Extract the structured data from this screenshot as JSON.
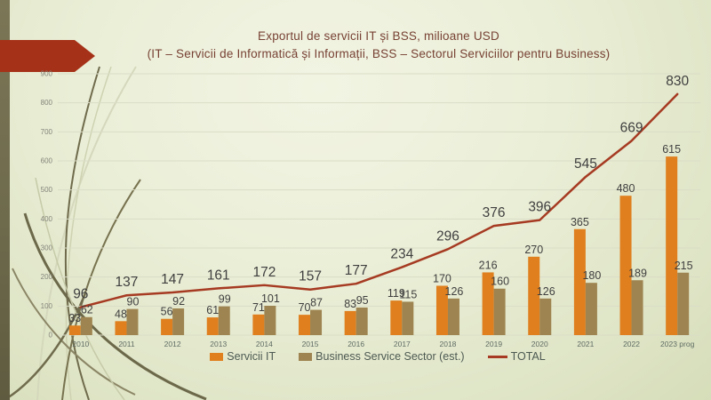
{
  "title": {
    "line1": "Exportul de servicii IT și BSS, milioane USD",
    "line2": "(IT – Servicii de Informatică și Informații, BSS – Sectorul Serviciilor pentru Business)"
  },
  "legend": {
    "servicii_it": "Servicii IT",
    "bss": "Business Service Sector (est.)",
    "total": "TOTAL"
  },
  "colors": {
    "servicii_it": "#DF7F1E",
    "bss": "#9E8450",
    "total_line": "#A63A22",
    "arrow_accent": "#A53218",
    "title_text": "#774134",
    "data_label": "#3F3F3F",
    "axis_tick_label": "#84847A",
    "year_label": "#5F6B63",
    "legend_text": "#4D5952",
    "gridline": "#DADDC6"
  },
  "chart_data": {
    "type": "bar+line combo",
    "title": "Exportul de servicii IT și BSS, milioane USD",
    "subtitle": "(IT – Servicii de Informatică și Informații, BSS – Sectorul Serviciilor pentru Business)",
    "categories": [
      "2010",
      "2011",
      "2012",
      "2013",
      "2014",
      "2015",
      "2016",
      "2017",
      "2018",
      "2019",
      "2020",
      "2021",
      "2022",
      "2023 prog"
    ],
    "series": [
      {
        "name": "Servicii IT",
        "type": "bar",
        "color_key": "servicii_it",
        "values": [
          33,
          48,
          56,
          61,
          71,
          70,
          83,
          119,
          170,
          216,
          270,
          365,
          480,
          615
        ]
      },
      {
        "name": "Business Service Sector (est.)",
        "type": "bar",
        "color_key": "bss",
        "values": [
          62,
          90,
          92,
          99,
          101,
          87,
          95,
          115,
          126,
          160,
          126,
          180,
          189,
          215
        ]
      },
      {
        "name": "TOTAL",
        "type": "line",
        "color_key": "total_line",
        "values": [
          96,
          137,
          147,
          161,
          172,
          157,
          177,
          234,
          296,
          376,
          396,
          545,
          669,
          830
        ]
      }
    ],
    "ylim": [
      0,
      900
    ],
    "y_ticks": [
      0,
      100,
      200,
      300,
      400,
      500,
      600,
      700,
      800,
      900
    ],
    "grid": true,
    "legend_position": "bottom",
    "data_labels": true
  }
}
